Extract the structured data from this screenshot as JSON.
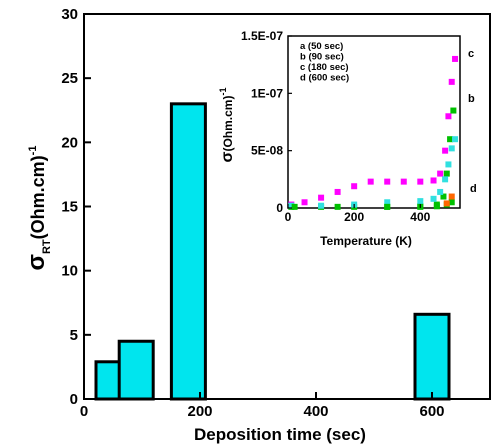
{
  "colors": {
    "bar_fill": "#00E5EE",
    "series_a": "#00C000",
    "series_b": "#00C000",
    "series_c": "#FF00FF",
    "series_d": "#30E0E0",
    "series_extra": "#FF6600"
  },
  "chart_data": [
    {
      "type": "bar",
      "xlabel": "Deposition time (sec)",
      "ylabel": "σ",
      "ylabel_sub": "RT",
      "ylabel_unit": "(Ohm.cm)",
      "ylabel_exp": "-1",
      "xlim": [
        0,
        700
      ],
      "ylim": [
        0,
        30
      ],
      "xticks": [
        "0",
        "200",
        "400",
        "600"
      ],
      "yticks": [
        "0",
        "5",
        "10",
        "15",
        "20",
        "25",
        "30"
      ],
      "x": [
        50,
        90,
        180,
        600
      ],
      "values": [
        2.9,
        4.5,
        23.0,
        6.6
      ],
      "grid": false
    },
    {
      "type": "scatter",
      "inset": true,
      "xlabel": "Temperature (K)",
      "ylabel": "σ",
      "ylabel_unit": "(Ohm.cm)",
      "ylabel_exp": "-1",
      "xlim": [
        0,
        520
      ],
      "ylim": [
        0,
        1.5e-07
      ],
      "xticks": [
        "0",
        "200",
        "400"
      ],
      "yticks": [
        "0",
        "5E-08",
        "1E-07",
        "1.5E-07"
      ],
      "legend": [
        "a (50 sec)",
        "b (90 sec)",
        "c (180 sec)",
        "d (600 sec)"
      ],
      "curve_labels": [
        "c",
        "b",
        "d"
      ],
      "series": [
        {
          "name": "c (180 sec)",
          "color_key": "series_c",
          "points": [
            [
              10,
              3e-09
            ],
            [
              50,
              5e-09
            ],
            [
              100,
              9e-09
            ],
            [
              150,
              1.4e-08
            ],
            [
              200,
              1.9e-08
            ],
            [
              250,
              2.3e-08
            ],
            [
              300,
              2.3e-08
            ],
            [
              350,
              2.3e-08
            ],
            [
              400,
              2.3e-08
            ],
            [
              440,
              2.4e-08
            ],
            [
              460,
              3e-08
            ],
            [
              475,
              5e-08
            ],
            [
              485,
              8e-08
            ],
            [
              495,
              1.1e-07
            ],
            [
              505,
              1.3e-07
            ]
          ]
        },
        {
          "name": "b (90 sec)",
          "color_key": "series_b",
          "points": [
            [
              10,
              1e-09
            ],
            [
              100,
              1e-09
            ],
            [
              200,
              1e-09
            ],
            [
              300,
              1e-09
            ],
            [
              400,
              1.5e-09
            ],
            [
              450,
              3e-09
            ],
            [
              470,
              1e-08
            ],
            [
              480,
              3e-08
            ],
            [
              490,
              6e-08
            ],
            [
              500,
              8.5e-08
            ]
          ]
        },
        {
          "name": "d (600 sec)",
          "color_key": "series_d",
          "points": [
            [
              10,
              2e-09
            ],
            [
              100,
              2e-09
            ],
            [
              200,
              3e-09
            ],
            [
              300,
              5e-09
            ],
            [
              400,
              6e-09
            ],
            [
              440,
              8e-09
            ],
            [
              460,
              1.4e-08
            ],
            [
              475,
              2.5e-08
            ],
            [
              485,
              3.8e-08
            ],
            [
              495,
              5.2e-08
            ],
            [
              505,
              6e-08
            ]
          ]
        },
        {
          "name": "a (50 sec)",
          "color_key": "series_a",
          "points": [
            [
              20,
              1e-09
            ],
            [
              150,
              1e-09
            ],
            [
              300,
              1e-09
            ],
            [
              400,
              1e-09
            ],
            [
              450,
              1.5e-09
            ],
            [
              480,
              3e-09
            ],
            [
              495,
              5e-09
            ]
          ]
        },
        {
          "name": "",
          "color_key": "series_extra",
          "points": [
            [
              480,
              4e-09
            ],
            [
              495,
              1e-08
            ]
          ]
        }
      ]
    }
  ]
}
